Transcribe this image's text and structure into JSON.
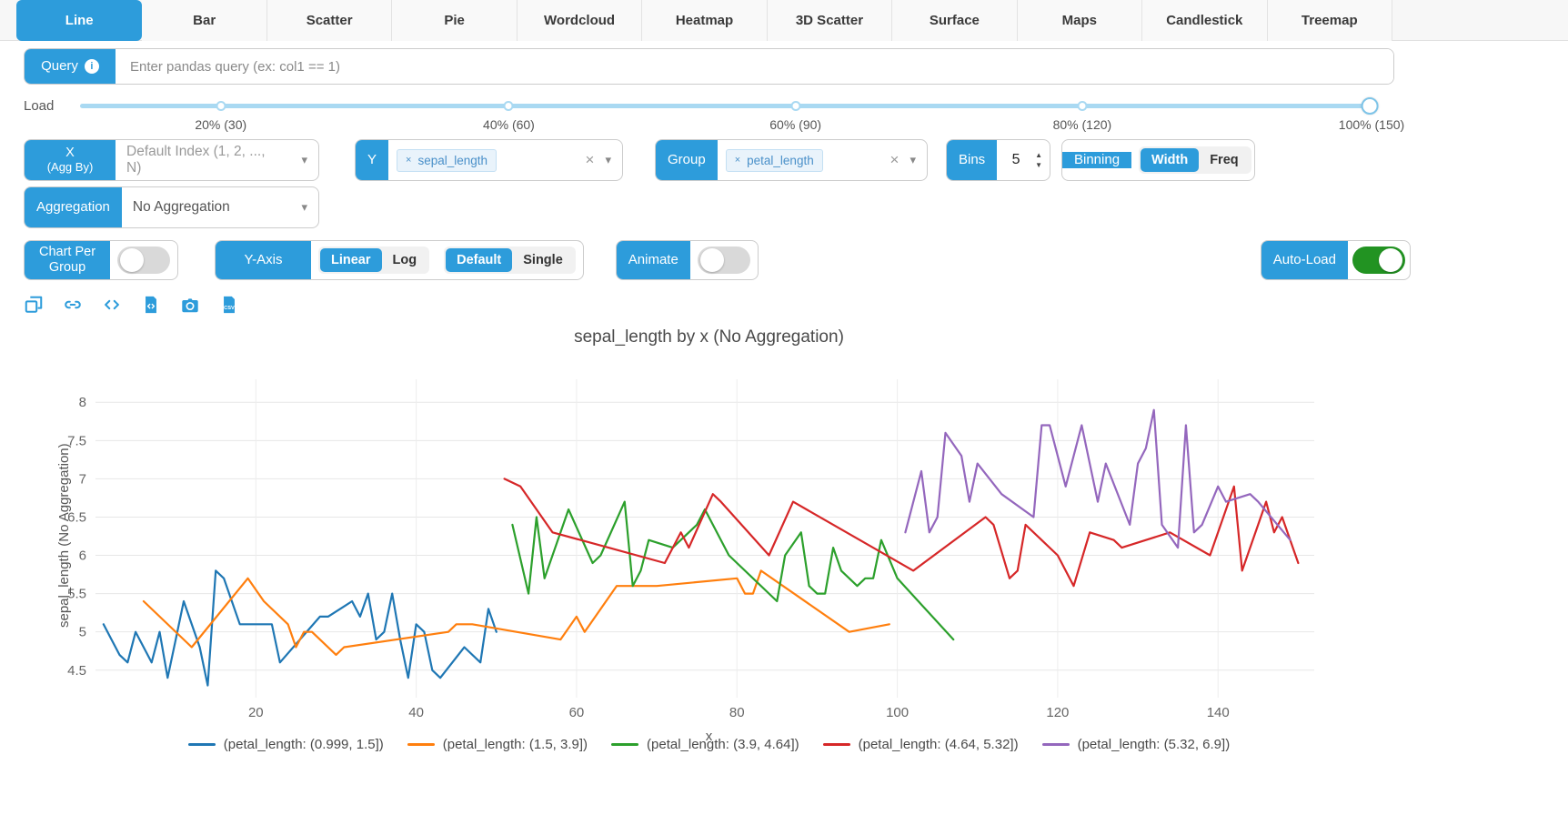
{
  "colors": {
    "accent_blue": "#2d9cdb",
    "toggle_green": "#229322",
    "slider_track": "#a9d9f2",
    "chip_bg": "#e9f3fb",
    "chip_text": "#4a90c9",
    "grid": "#e7e7e7"
  },
  "tabs": [
    {
      "label": "Line",
      "active": true
    },
    {
      "label": "Bar",
      "active": false
    },
    {
      "label": "Scatter",
      "active": false
    },
    {
      "label": "Pie",
      "active": false
    },
    {
      "label": "Wordcloud",
      "active": false
    },
    {
      "label": "Heatmap",
      "active": false
    },
    {
      "label": "3D Scatter",
      "active": false
    },
    {
      "label": "Surface",
      "active": false
    },
    {
      "label": "Maps",
      "active": false
    },
    {
      "label": "Candlestick",
      "active": false
    },
    {
      "label": "Treemap",
      "active": false
    }
  ],
  "query": {
    "label": "Query",
    "placeholder": "Enter pandas query (ex: col1 == 1)"
  },
  "load": {
    "label": "Load",
    "value_percent": 100,
    "tick_labels": [
      "20% (30)",
      "40% (60)",
      "60% (90)",
      "80% (120)",
      "100% (150)"
    ]
  },
  "controls": {
    "x": {
      "label": "X",
      "sublabel": "(Agg By)",
      "value": "Default Index (1, 2, ..., N)"
    },
    "y": {
      "label": "Y",
      "selected": "sepal_length"
    },
    "group": {
      "label": "Group",
      "selected": "petal_length"
    },
    "bins": {
      "label": "Bins",
      "value": "5"
    },
    "binning": {
      "label": "Binning",
      "options": [
        "Width",
        "Freq"
      ],
      "selected": "Width"
    },
    "aggregation": {
      "label": "Aggregation",
      "value": "No Aggregation"
    },
    "chart_per_group": {
      "label": "Chart Per Group",
      "enabled": false
    },
    "y_axis": {
      "label": "Y-Axis",
      "scale_options": [
        "Linear",
        "Log"
      ],
      "scale_selected": "Linear",
      "range_options": [
        "Default",
        "Single"
      ],
      "range_selected": "Default"
    },
    "animate": {
      "label": "Animate",
      "enabled": false
    },
    "auto_load": {
      "label": "Auto-Load",
      "enabled": true
    }
  },
  "toolbar": {
    "icons": [
      "popout-chart-icon",
      "copy-link-icon",
      "code-export-icon",
      "export-html-icon",
      "export-png-icon",
      "export-csv-icon"
    ]
  },
  "chart_data": {
    "type": "line",
    "title": "sepal_length by x (No Aggregation)",
    "xlabel": "x",
    "ylabel": "sepal_length (No Aggregation)",
    "xlim": [
      0,
      152
    ],
    "ylim": [
      4.2,
      8.3
    ],
    "xticks": [
      20,
      40,
      60,
      80,
      100,
      120,
      140
    ],
    "yticks": [
      4.5,
      5,
      5.5,
      6,
      6.5,
      7,
      7.5,
      8
    ],
    "grid": true,
    "legend_position": "bottom",
    "series": [
      {
        "name": "(petal_length: (0.999, 1.5])",
        "color": "#1f77b4",
        "x": [
          1,
          2,
          3,
          4,
          5,
          7,
          8,
          9,
          10,
          11,
          13,
          14,
          15,
          16,
          17,
          18,
          20,
          22,
          23,
          28,
          29,
          32,
          33,
          34,
          35,
          36,
          37,
          38,
          39,
          40,
          41,
          42,
          43,
          46,
          48,
          49,
          50
        ],
        "y": [
          5.1,
          4.9,
          4.7,
          4.6,
          5.0,
          4.6,
          5.0,
          4.4,
          4.9,
          5.4,
          4.8,
          4.3,
          5.8,
          5.7,
          5.4,
          5.1,
          5.1,
          5.1,
          4.6,
          5.2,
          5.2,
          5.4,
          5.2,
          5.5,
          4.9,
          5.0,
          5.5,
          4.9,
          4.4,
          5.1,
          5.0,
          4.5,
          4.4,
          4.8,
          4.6,
          5.3,
          5.0
        ]
      },
      {
        "name": "(petal_length: (1.5, 3.9])",
        "color": "#ff7f0e",
        "x": [
          6,
          12,
          19,
          21,
          24,
          25,
          26,
          27,
          30,
          31,
          44,
          45,
          47,
          58,
          60,
          61,
          65,
          70,
          80,
          81,
          82,
          83,
          94,
          99
        ],
        "y": [
          5.4,
          4.8,
          5.7,
          5.4,
          5.1,
          4.8,
          5.0,
          5.0,
          4.7,
          4.8,
          5.0,
          5.1,
          5.1,
          4.9,
          5.2,
          5.0,
          5.6,
          5.6,
          5.7,
          5.5,
          5.5,
          5.8,
          5.0,
          5.1
        ]
      },
      {
        "name": "(petal_length: (3.9, 4.64])",
        "color": "#2ca02c",
        "x": [
          52,
          54,
          55,
          56,
          59,
          62,
          63,
          66,
          67,
          68,
          69,
          72,
          75,
          76,
          79,
          85,
          86,
          88,
          89,
          90,
          91,
          92,
          93,
          95,
          96,
          97,
          98,
          100,
          107
        ],
        "y": [
          6.4,
          5.5,
          6.5,
          5.7,
          6.6,
          5.9,
          6.0,
          6.7,
          5.6,
          5.8,
          6.2,
          6.1,
          6.4,
          6.6,
          6.0,
          5.4,
          6.0,
          6.3,
          5.6,
          5.5,
          5.5,
          6.1,
          5.8,
          5.6,
          5.7,
          5.7,
          6.2,
          5.7,
          4.9
        ]
      },
      {
        "name": "(petal_length: (4.64, 5.32])",
        "color": "#d62728",
        "x": [
          51,
          53,
          57,
          64,
          71,
          73,
          74,
          77,
          78,
          84,
          87,
          102,
          111,
          112,
          114,
          115,
          116,
          120,
          122,
          124,
          127,
          128,
          134,
          139,
          142,
          143,
          146,
          147,
          148,
          150
        ],
        "y": [
          7.0,
          6.9,
          6.3,
          6.1,
          5.9,
          6.3,
          6.1,
          6.8,
          6.7,
          6.0,
          6.7,
          5.8,
          6.5,
          6.4,
          5.7,
          5.8,
          6.4,
          6.0,
          5.6,
          6.3,
          6.2,
          6.1,
          6.3,
          6.0,
          6.9,
          5.8,
          6.7,
          6.3,
          6.5,
          5.9
        ]
      },
      {
        "name": "(petal_length: (5.32, 6.9])",
        "color": "#9467bd",
        "x": [
          101,
          103,
          104,
          105,
          106,
          108,
          109,
          110,
          113,
          117,
          118,
          119,
          121,
          123,
          125,
          126,
          129,
          130,
          131,
          132,
          133,
          135,
          136,
          137,
          138,
          140,
          141,
          144,
          145,
          149
        ],
        "y": [
          6.3,
          7.1,
          6.3,
          6.5,
          7.6,
          7.3,
          6.7,
          7.2,
          6.8,
          6.5,
          7.7,
          7.7,
          6.9,
          7.7,
          6.7,
          7.2,
          6.4,
          7.2,
          7.4,
          7.9,
          6.4,
          6.1,
          7.7,
          6.3,
          6.4,
          6.9,
          6.7,
          6.8,
          6.7,
          6.2
        ]
      }
    ]
  }
}
